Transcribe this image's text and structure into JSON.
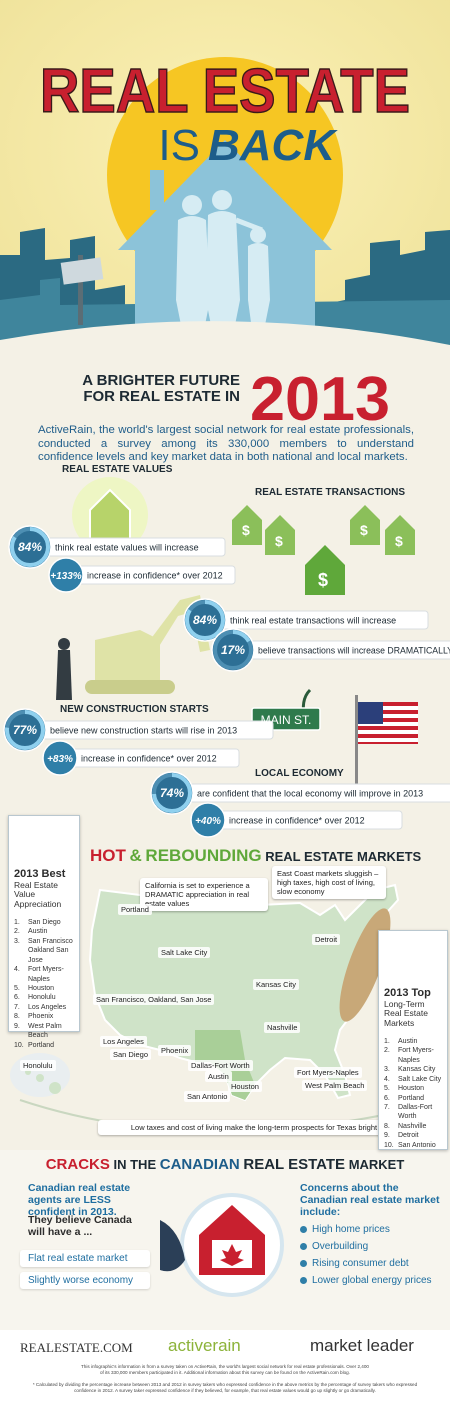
{
  "header": {
    "title_line1": "REAL ESTATE",
    "title_line2_a": "IS",
    "title_line2_b": "BACK"
  },
  "tagline": {
    "text": "A BRIGHTER FUTURE FOR REAL ESTATE IN",
    "year": "2013"
  },
  "intro": "ActiveRain, the world's largest social network for real estate professionals, conducted a survey among its 330,000 members to understand confidence levels and key market data in both national and local markets.",
  "sections": [
    {
      "heading": "REAL ESTATE VALUES",
      "items": [
        {
          "value": 84,
          "label": "84%",
          "text": "think real estate values will increase"
        },
        {
          "label": "+133%",
          "text": "increase in confidence* over 2012"
        }
      ]
    },
    {
      "heading": "REAL ESTATE TRANSACTIONS",
      "items": [
        {
          "value": 84,
          "label": "84%",
          "text": "think real estate transactions will increase"
        },
        {
          "value": 17,
          "label": "17%",
          "text": "believe transactions will increase DRAMATICALLY"
        }
      ]
    },
    {
      "heading": "NEW CONSTRUCTION STARTS",
      "items": [
        {
          "value": 77,
          "label": "77%",
          "text": "believe new construction starts will rise in 2013"
        },
        {
          "label": "+83%",
          "text": "increase in confidence* over 2012"
        }
      ]
    },
    {
      "heading": "LOCAL ECONOMY",
      "items": [
        {
          "value": 74,
          "label": "74%",
          "text": "are confident that the local economy will improve in 2013"
        },
        {
          "label": "+40%",
          "text": "increase in confidence* over 2012"
        }
      ]
    }
  ],
  "street_sign": "MAIN ST.",
  "best_list": {
    "title": "2013 Best",
    "subtitle": "Real Estate Value Appreciation",
    "items": [
      {
        "n": "1.",
        "name": "San Diego"
      },
      {
        "n": "2.",
        "name": "Austin"
      },
      {
        "n": "3.",
        "name": "San Francisco Oakland San Jose"
      },
      {
        "n": "4.",
        "name": "Fort Myers-Naples"
      },
      {
        "n": "5.",
        "name": "Houston"
      },
      {
        "n": "6.",
        "name": "Honolulu"
      },
      {
        "n": "7.",
        "name": "Los Angeles"
      },
      {
        "n": "8.",
        "name": "Phoenix"
      },
      {
        "n": "9.",
        "name": "West Palm Beach"
      },
      {
        "n": "10.",
        "name": "Portland"
      }
    ]
  },
  "map": {
    "title_parts": [
      "HOT",
      "&",
      "REBOUNDING",
      "REAL ESTATE MARKETS"
    ],
    "callout_california": "California is set to experience a DRAMATIC appreciation in real estate values",
    "callout_east": "East Coast markets sluggish – high taxes, high cost of living, slow economy",
    "callout_texas": "Low taxes and cost of living make the long-term prospects for Texas bright",
    "cities": [
      "Portland",
      "Salt Lake City",
      "San Francisco, Oakland, San Jose",
      "Kansas City",
      "Detroit",
      "Nashville",
      "Los Angeles",
      "San Diego",
      "Phoenix",
      "Dallas-Fort Worth",
      "Austin",
      "Houston",
      "San Antonio",
      "Fort Myers-Naples",
      "West Palm Beach",
      "Honolulu"
    ]
  },
  "top_list": {
    "title": "2013 Top",
    "subtitle": "Long-Term Real Estate Markets",
    "items": [
      {
        "n": "1.",
        "name": "Austin"
      },
      {
        "n": "2.",
        "name": "Fort Myers-Naples"
      },
      {
        "n": "3.",
        "name": "Kansas City"
      },
      {
        "n": "4.",
        "name": "Salt Lake City"
      },
      {
        "n": "5.",
        "name": "Houston"
      },
      {
        "n": "6.",
        "name": "Portland"
      },
      {
        "n": "7.",
        "name": "Dallas-Fort Worth"
      },
      {
        "n": "8.",
        "name": "Nashville"
      },
      {
        "n": "9.",
        "name": "Detroit"
      },
      {
        "n": "10.",
        "name": "San Antonio"
      }
    ]
  },
  "canada": {
    "title_parts": [
      "CRACKS",
      "IN THE",
      "CANADIAN",
      "REAL ESTATE",
      "MARKET"
    ],
    "headline": "Canadian real estate agents are LESS confident in 2013.",
    "believe": "They believe Canada will have a ...",
    "believe_items": [
      "Flat real estate market",
      "Slightly worse economy"
    ],
    "concerns_heading": "Concerns about the Canadian real estate market include:",
    "concerns": [
      "High home prices",
      "Overbuilding",
      "Rising consumer debt",
      "Lower global energy prices"
    ]
  },
  "footer": {
    "logos": [
      "REALESTATE.COM",
      "activerain",
      "market leader"
    ],
    "source": "This infographic's information is from a survey taken on ActiveRain, the world's largest social network for real estate professionals. Over 2,400 of its 330,000 members participated in it. Additional information about this survey can be found on the ActiveRain.com blog.",
    "footnote": "* Calculated by dividing the percentage increase between 2013 and 2012 in survey takers who expressed confidence in the above metrics by the percentage of survey takers who expressed confidence in 2012. A survey taker expressed confidence if they believed, for example, that real estate values would go up slightly or go dramatically."
  }
}
